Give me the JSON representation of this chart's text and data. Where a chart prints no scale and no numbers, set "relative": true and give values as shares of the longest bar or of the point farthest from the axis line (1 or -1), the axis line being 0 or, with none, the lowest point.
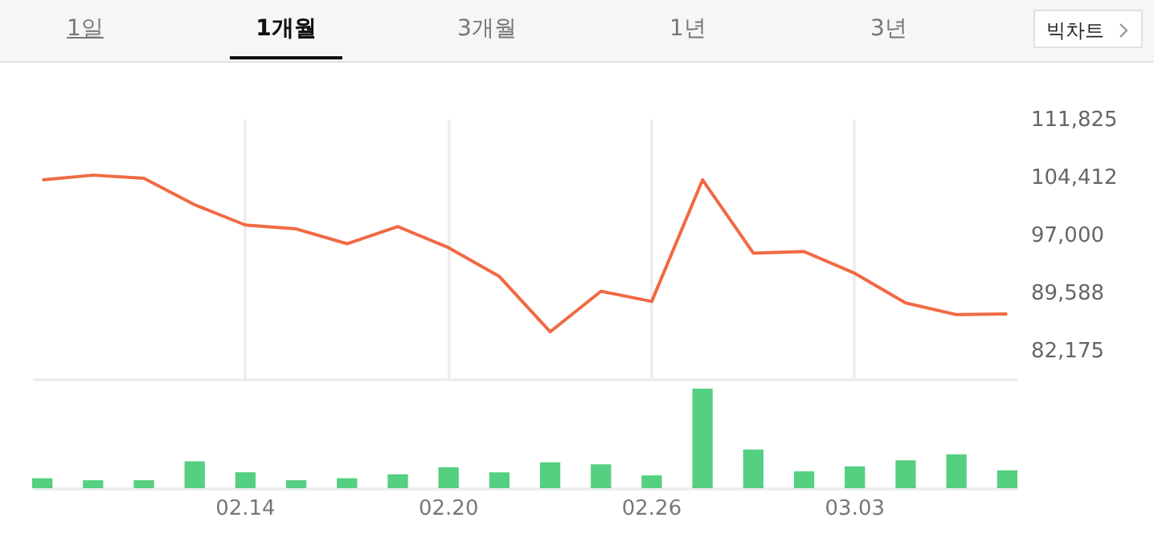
{
  "chart_data": [
    {
      "type": "line",
      "annotations": [
        "1일",
        "1개월",
        "3개월",
        "1년",
        "3년",
        "빅차트"
      ],
      "categories": [
        null,
        null,
        null,
        null,
        "02.14",
        null,
        null,
        null,
        "02.20",
        null,
        null,
        null,
        "02.26",
        null,
        null,
        null,
        "03.03",
        null,
        null,
        null
      ],
      "series": [
        {
          "color": "#f06a43",
          "values": [
            104000,
            104600,
            104200,
            100800,
            98200,
            97700,
            95800,
            98000,
            95300,
            91600,
            84500,
            89700,
            88400,
            104000,
            94600,
            94800,
            92000,
            88200,
            86700,
            86800
          ]
        }
      ],
      "ylim": [
        78444,
        111825
      ],
      "yticks": [
        {
          "value": 82175,
          "label": "82,175"
        },
        {
          "value": 89588,
          "label": "89,588"
        },
        {
          "value": 97000,
          "label": "97,000"
        },
        {
          "value": 104412,
          "label": "104,412"
        },
        {
          "value": 111825,
          "label": "111,825"
        }
      ],
      "grid": "x",
      "tick_labels": "y"
    },
    {
      "type": "bar",
      "categories": [
        null,
        null,
        null,
        null,
        "02.14",
        null,
        null,
        null,
        "02.20",
        null,
        null,
        null,
        "02.26",
        null,
        null,
        null,
        "03.03",
        null,
        null,
        null
      ],
      "values": [
        0.1,
        0.08,
        0.08,
        0.27,
        0.16,
        0.08,
        0.1,
        0.14,
        0.21,
        0.16,
        0.26,
        0.24,
        0.13,
        1,
        0.39,
        0.17,
        0.22,
        0.28,
        0.34,
        0.18
      ],
      "color": "#55cf80",
      "relative": true,
      "tick_labels": "x"
    }
  ]
}
